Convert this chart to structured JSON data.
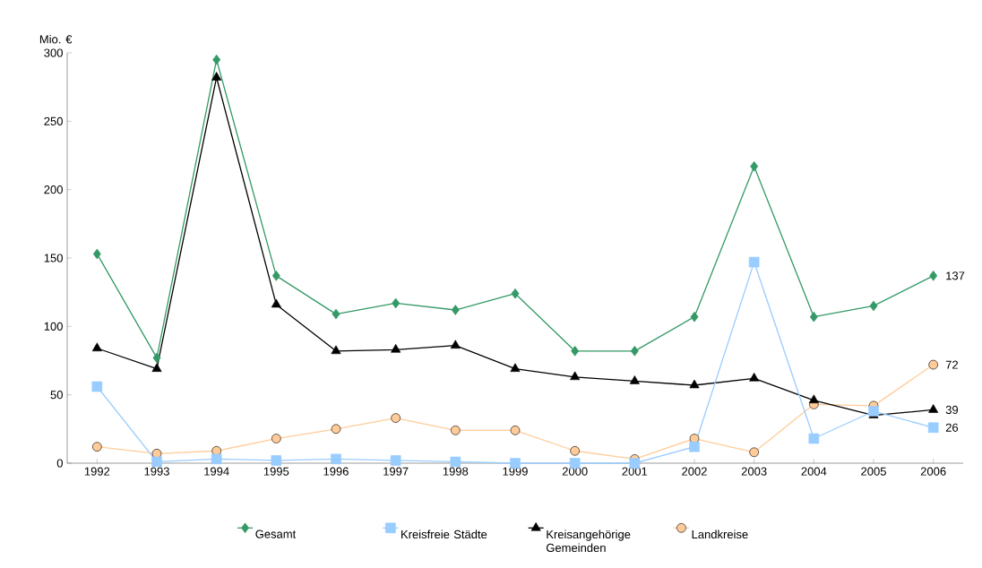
{
  "chart_data": {
    "type": "line",
    "ylabel": "Mio. €",
    "categories": [
      "1992",
      "1993",
      "1994",
      "1995",
      "1996",
      "1997",
      "1998",
      "1999",
      "2000",
      "2001",
      "2002",
      "2003",
      "2004",
      "2005",
      "2006"
    ],
    "ylim": [
      0,
      300
    ],
    "yticks": [
      0,
      50,
      100,
      150,
      200,
      250,
      300
    ],
    "grid": false,
    "legend": "bottom",
    "series": [
      {
        "name": "Gesamt",
        "color": "#339966",
        "marker": "diamond",
        "values": [
          153,
          77,
          295,
          137,
          109,
          117,
          112,
          124,
          82,
          82,
          107,
          217,
          107,
          115,
          137
        ],
        "value_labels": [
          null,
          null,
          null,
          null,
          null,
          null,
          null,
          null,
          null,
          null,
          null,
          null,
          null,
          null,
          "137"
        ]
      },
      {
        "name": "Kreisfreie Städte",
        "color": "#99ccff",
        "marker": "square",
        "values": [
          56,
          1,
          3,
          2,
          3,
          2,
          1,
          0,
          0,
          0,
          12,
          147,
          18,
          38,
          26
        ],
        "value_labels": [
          null,
          null,
          null,
          null,
          null,
          null,
          null,
          null,
          null,
          null,
          null,
          null,
          null,
          null,
          "26"
        ]
      },
      {
        "name": "Kreisangehörige Gemeinden",
        "color": "#000000",
        "marker": "triangle",
        "values": [
          84,
          69,
          282,
          116,
          82,
          83,
          86,
          69,
          63,
          60,
          57,
          62,
          46,
          35,
          39
        ],
        "value_labels": [
          null,
          null,
          null,
          null,
          null,
          null,
          null,
          null,
          null,
          null,
          null,
          null,
          null,
          null,
          "39"
        ]
      },
      {
        "name": "Landkreise",
        "color": "#ffcc99",
        "marker": "circle",
        "values": [
          12,
          7,
          9,
          18,
          25,
          33,
          24,
          24,
          9,
          3,
          18,
          8,
          43,
          42,
          72
        ],
        "value_labels": [
          null,
          null,
          null,
          null,
          null,
          null,
          null,
          null,
          null,
          null,
          null,
          null,
          null,
          null,
          "72"
        ]
      }
    ]
  }
}
